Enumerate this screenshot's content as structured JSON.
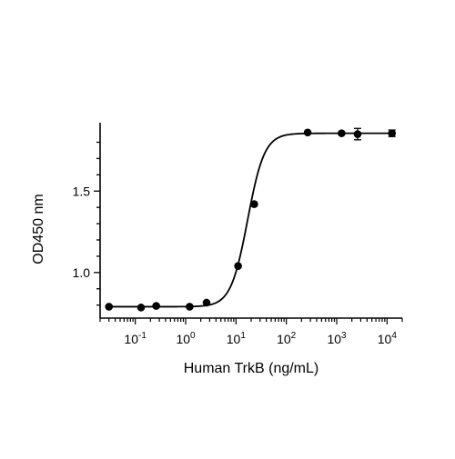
{
  "chart_data": {
    "type": "scatter",
    "xlabel": "Human TrkB (ng/mL)",
    "ylabel": "OD450 nm",
    "x_scale": "log10",
    "xlim": [
      0.02,
      20000
    ],
    "ylim": [
      0.72,
      1.92
    ],
    "grid": false,
    "legend": "none",
    "x_ticks": [
      {
        "value": 0.1,
        "base": "10",
        "exp": "-1"
      },
      {
        "value": 1,
        "base": "10",
        "exp": "0"
      },
      {
        "value": 10,
        "base": "10",
        "exp": "1"
      },
      {
        "value": 100,
        "base": "10",
        "exp": "2"
      },
      {
        "value": 1000,
        "base": "10",
        "exp": "3"
      },
      {
        "value": 10000,
        "base": "10",
        "exp": "4"
      }
    ],
    "y_ticks": [
      {
        "value": 1.0,
        "label": "1.0"
      },
      {
        "value": 1.5,
        "label": "1.5"
      }
    ],
    "series": [
      {
        "x": [
          0.03,
          0.13,
          0.26,
          1.2,
          2.6,
          11,
          23,
          265,
          1250,
          2600,
          12500
        ],
        "y": [
          0.79,
          0.785,
          0.795,
          0.79,
          0.815,
          1.04,
          1.42,
          1.86,
          1.855,
          1.85,
          1.855
        ],
        "error": [
          0,
          0,
          0,
          0,
          0,
          0,
          0,
          0,
          0,
          0.035,
          0.02
        ]
      }
    ],
    "fit": {
      "model": "4PL",
      "bottom": 0.79,
      "top": 1.855,
      "ec50": 17,
      "hill": 2.6
    },
    "colors": {
      "marks": "#000000",
      "background": "#ffffff"
    }
  }
}
